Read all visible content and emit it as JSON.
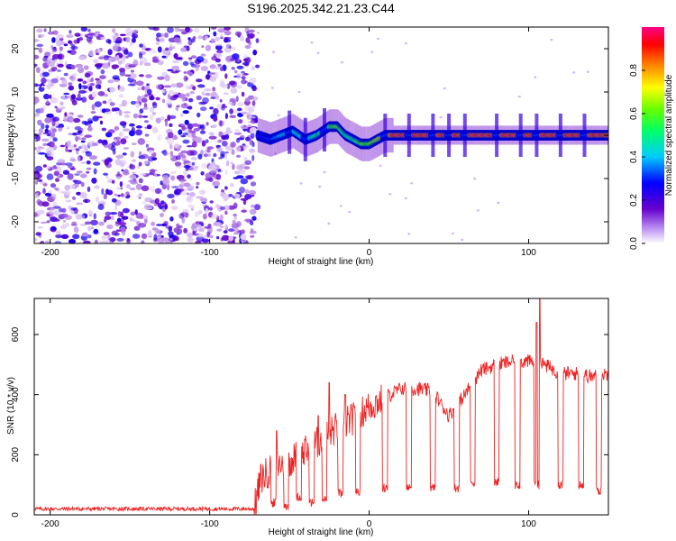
{
  "title": "S196.2025.342.21.23.C44",
  "chart_data": [
    {
      "type": "heatmap",
      "name": "spectrogram",
      "xlabel": "Height of straight line (km)",
      "ylabel": "Frequency (Hz)",
      "xlim": [
        -210,
        150
      ],
      "ylim": [
        -25,
        25
      ],
      "xticks": [
        -200,
        -100,
        0,
        100
      ],
      "yticks": [
        -20,
        -10,
        0,
        10,
        20
      ],
      "colorbar": {
        "label": "Normalized spectral amplitude",
        "range": [
          0,
          1
        ],
        "ticks": [
          "0.0",
          "0.2",
          "0.4",
          "0.6",
          "0.8"
        ],
        "colors": [
          "#ffffff",
          "#6600cc",
          "#0000ff",
          "#00ffff",
          "#00ff00",
          "#ffff00",
          "#ff8000",
          "#ff0000",
          "#ff0080"
        ]
      },
      "noise_region_x": [
        -210,
        -70
      ],
      "signal_track": {
        "x": [
          -70,
          -62,
          -55,
          -48,
          -40,
          -33,
          -25,
          -20,
          -15,
          -10,
          -5,
          0,
          5,
          10,
          15,
          150
        ],
        "freq": [
          0,
          -1,
          0,
          1,
          -1,
          0,
          2,
          2,
          0,
          -1,
          -2,
          -2,
          -1,
          0,
          0,
          0
        ],
        "amp": [
          0.25,
          0.3,
          0.4,
          0.45,
          0.45,
          0.5,
          0.55,
          0.6,
          0.5,
          0.5,
          0.6,
          0.6,
          0.7,
          0.75,
          0.95,
          0.95
        ]
      },
      "dropouts_x": [
        -50,
        -40,
        -28,
        10,
        25,
        40,
        50,
        60,
        80,
        95,
        105,
        120,
        135
      ]
    },
    {
      "type": "line",
      "name": "snr",
      "xlabel": "Height of straight line (km)",
      "ylabel": "SNR (10 * v/v)",
      "xlim": [
        -210,
        150
      ],
      "ylim": [
        0,
        720
      ],
      "xticks": [
        -200,
        -100,
        0,
        100
      ],
      "yticks": [
        0,
        200,
        400,
        600
      ],
      "color": "#ee2222",
      "envelope": {
        "x": [
          -210,
          -72,
          -68,
          -60,
          -50,
          -40,
          -30,
          -20,
          -10,
          0,
          10,
          20,
          30,
          40,
          50,
          60,
          70,
          80,
          90,
          100,
          110,
          120,
          130,
          140,
          150
        ],
        "y": [
          20,
          20,
          120,
          160,
          180,
          210,
          250,
          290,
          320,
          360,
          390,
          420,
          420,
          410,
          330,
          400,
          480,
          500,
          510,
          510,
          500,
          470,
          470,
          460,
          470
        ]
      },
      "dropouts": [
        {
          "x": -60,
          "y": 40
        },
        {
          "x": -52,
          "y": 30
        },
        {
          "x": -44,
          "y": 60
        },
        {
          "x": -36,
          "y": 40
        },
        {
          "x": -28,
          "y": 50
        },
        {
          "x": -18,
          "y": 70
        },
        {
          "x": -7,
          "y": 80
        },
        {
          "x": 10,
          "y": 90
        },
        {
          "x": 25,
          "y": 90
        },
        {
          "x": 40,
          "y": 90
        },
        {
          "x": 55,
          "y": 90
        },
        {
          "x": 65,
          "y": 110
        },
        {
          "x": 80,
          "y": 110
        },
        {
          "x": 93,
          "y": 100
        },
        {
          "x": 105,
          "y": 100
        },
        {
          "x": 120,
          "y": 100
        },
        {
          "x": 133,
          "y": 100
        },
        {
          "x": 144,
          "y": 80
        }
      ],
      "spikes": [
        {
          "x": -58,
          "y": 280
        },
        {
          "x": -32,
          "y": 330
        },
        {
          "x": -25,
          "y": 440
        },
        {
          "x": -15,
          "y": 400
        },
        {
          "x": 107,
          "y": 720
        },
        {
          "x": 105,
          "y": 640
        }
      ]
    }
  ]
}
